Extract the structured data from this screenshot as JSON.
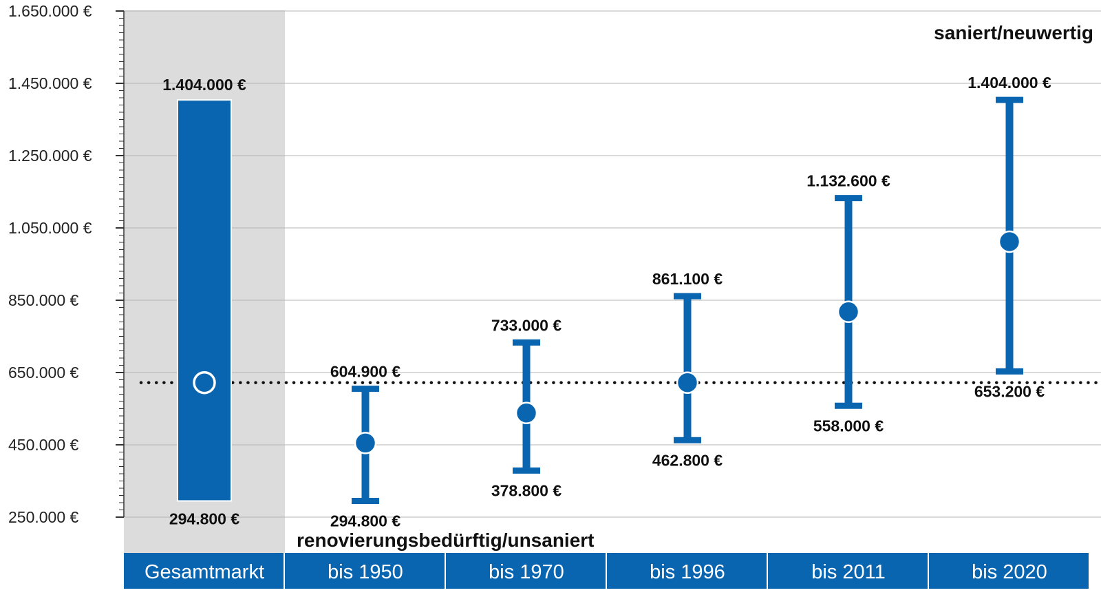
{
  "chart_data": {
    "type": "range",
    "y_tick_labels": [
      "1.650.000 €",
      "1.450.000 €",
      "1.250.000 €",
      "1.050.000 €",
      "850.000 €",
      "650.000 €",
      "450.000 €",
      "250.000 €"
    ],
    "y_tick_values": [
      1650000,
      1450000,
      1250000,
      1050000,
      850000,
      650000,
      450000,
      250000
    ],
    "ylim": [
      250000,
      1650000
    ],
    "grid": true,
    "reference_line": {
      "value": 622000,
      "style": "dotted"
    },
    "annotation_top": "saniert/neuwertig",
    "annotation_bottom": "renovierungsbedürftig/unsaniert",
    "colors": {
      "accent": "#0a65b1",
      "highlight_bg": "#dcdcdc",
      "grid": "#b4b4b4",
      "reference": "#111111"
    },
    "categories": [
      {
        "label": "Gesamtmarkt",
        "min": 294800,
        "max": 1404000,
        "median": 622000,
        "min_label": "294.800 €",
        "max_label": "1.404.000 €",
        "style": "bar",
        "highlighted": true
      },
      {
        "label": "bis 1950",
        "min": 294800,
        "max": 604900,
        "median": 455000,
        "min_label": "294.800 €",
        "max_label": "604.900 €",
        "style": "errorbar",
        "highlighted": false
      },
      {
        "label": "bis 1970",
        "min": 378800,
        "max": 733000,
        "median": 538000,
        "min_label": "378.800 €",
        "max_label": "733.000 €",
        "style": "errorbar",
        "highlighted": false
      },
      {
        "label": "bis 1996",
        "min": 462800,
        "max": 861100,
        "median": 622000,
        "min_label": "462.800 €",
        "max_label": "861.100 €",
        "style": "errorbar",
        "highlighted": false
      },
      {
        "label": "bis 2011",
        "min": 558000,
        "max": 1132600,
        "median": 818000,
        "min_label": "558.000 €",
        "max_label": "1.132.600 €",
        "style": "errorbar",
        "highlighted": false
      },
      {
        "label": "bis 2020",
        "min": 653200,
        "max": 1404000,
        "median": 1012000,
        "min_label": "653.200 €",
        "max_label": "1.404.000 €",
        "style": "errorbar",
        "highlighted": false
      }
    ]
  }
}
